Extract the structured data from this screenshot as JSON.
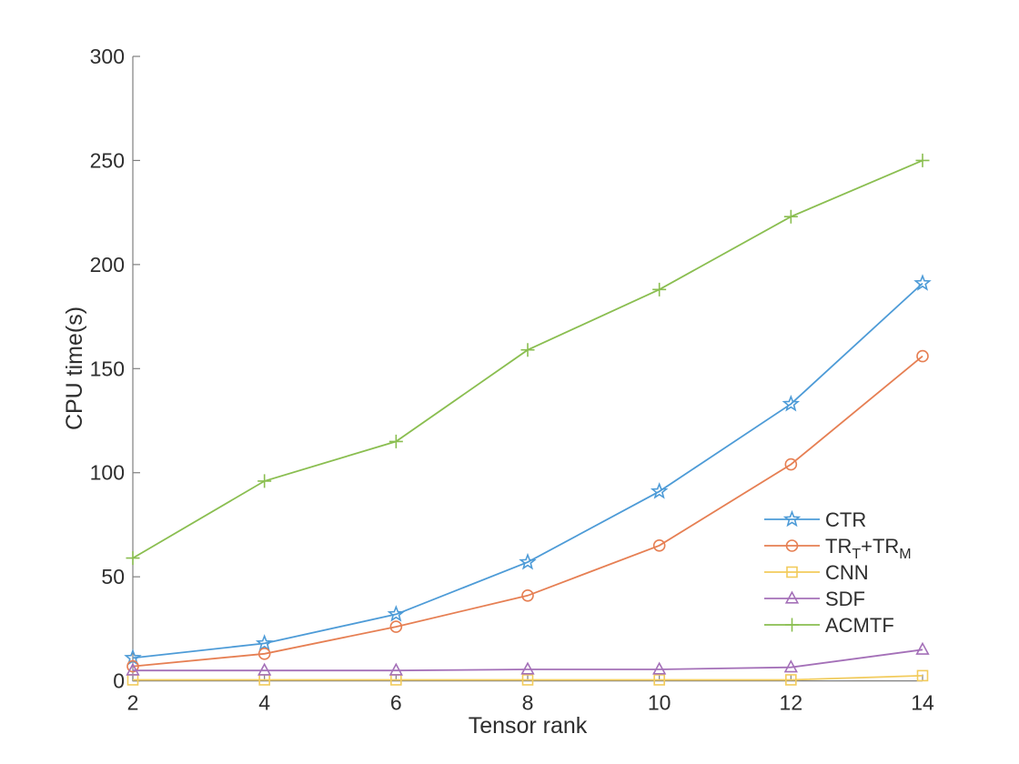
{
  "figure": {
    "background": "#ffffff",
    "text_color": "#2e2e2e",
    "axis_color": "#7f7f7f"
  },
  "chart_data": {
    "type": "line",
    "title": "",
    "xlabel": "Tensor rank",
    "ylabel": "CPU time(s)",
    "xlim": [
      2,
      14
    ],
    "ylim": [
      0,
      300
    ],
    "xticks": [
      2,
      4,
      6,
      8,
      10,
      12,
      14
    ],
    "yticks": [
      0,
      50,
      100,
      150,
      200,
      250,
      300
    ],
    "grid": false,
    "box": false,
    "tick_direction": "in",
    "legend_position": "inside-right-lower",
    "x": [
      2,
      4,
      6,
      8,
      10,
      12,
      14
    ],
    "series": [
      {
        "name": "CTR",
        "label_parts": [
          {
            "t": "CTR"
          }
        ],
        "marker": "pentagram",
        "color": "#4d9bd7",
        "values": [
          11,
          18,
          32,
          57,
          91,
          133,
          191
        ]
      },
      {
        "name": "TR_T+TR_M",
        "label_parts": [
          {
            "t": "TR"
          },
          {
            "t": "T",
            "sub": true
          },
          {
            "t": "+TR"
          },
          {
            "t": "M",
            "sub": true
          }
        ],
        "marker": "circle",
        "color": "#e67f53",
        "values": [
          7,
          13,
          26,
          41,
          65,
          104,
          156
        ]
      },
      {
        "name": "CNN",
        "label_parts": [
          {
            "t": "CNN"
          }
        ],
        "marker": "square",
        "color": "#f2cb5c",
        "values": [
          0.5,
          0.5,
          0.5,
          0.5,
          0.5,
          0.5,
          2.5
        ]
      },
      {
        "name": "SDF",
        "label_parts": [
          {
            "t": "SDF"
          }
        ],
        "marker": "triangle",
        "color": "#a470b8",
        "values": [
          5,
          5,
          5,
          5.5,
          5.5,
          6.5,
          15
        ]
      },
      {
        "name": "ACMTF",
        "label_parts": [
          {
            "t": "ACMTF"
          }
        ],
        "marker": "plus",
        "color": "#8abe50",
        "values": [
          59,
          96,
          115,
          159,
          188,
          223,
          250
        ]
      }
    ]
  }
}
